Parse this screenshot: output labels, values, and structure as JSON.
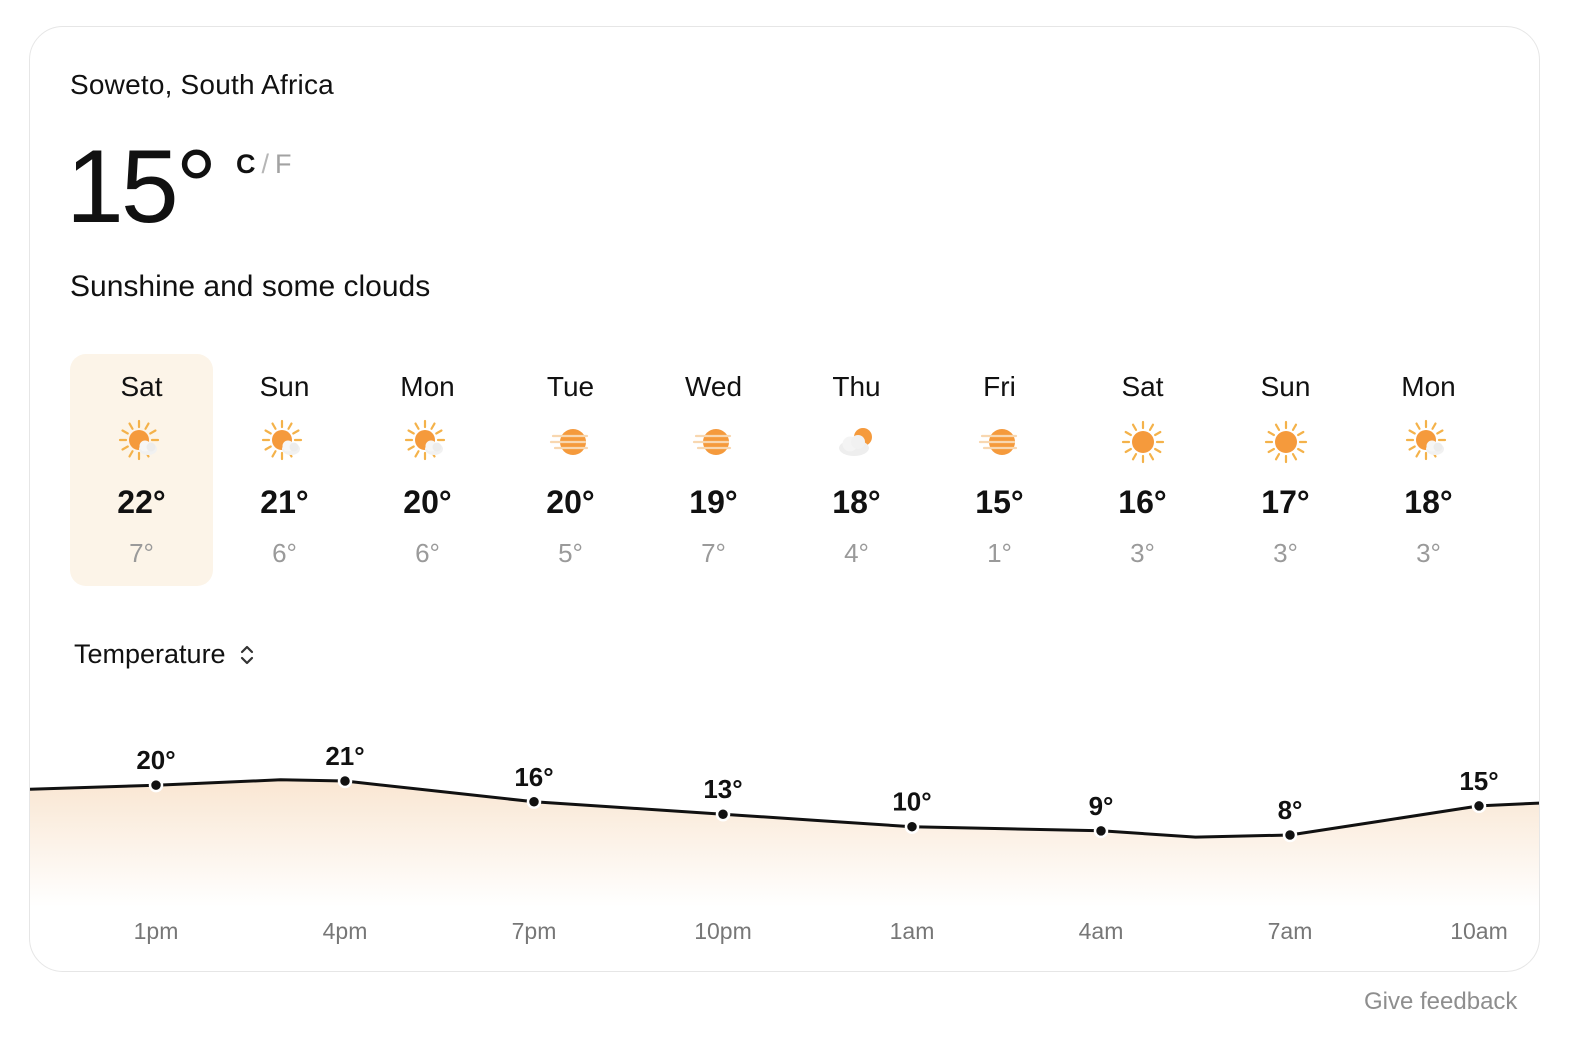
{
  "location": "Soweto, South Africa",
  "current": {
    "temperature": "15°",
    "unit_c": "C",
    "unit_separator": "/",
    "unit_f": "F",
    "condition": "Sunshine and some clouds"
  },
  "forecast": [
    {
      "day": "Sat",
      "icon": "sun-cloud-icon",
      "high": "22°",
      "low": "7°",
      "selected": true
    },
    {
      "day": "Sun",
      "icon": "sun-cloud-icon",
      "high": "21°",
      "low": "6°"
    },
    {
      "day": "Mon",
      "icon": "sun-cloud-icon",
      "high": "20°",
      "low": "6°"
    },
    {
      "day": "Tue",
      "icon": "haze-sun-icon",
      "high": "20°",
      "low": "5°"
    },
    {
      "day": "Wed",
      "icon": "haze-sun-icon",
      "high": "19°",
      "low": "7°"
    },
    {
      "day": "Thu",
      "icon": "cloud-sun-icon",
      "high": "18°",
      "low": "4°"
    },
    {
      "day": "Fri",
      "icon": "haze-sun-icon",
      "high": "15°",
      "low": "1°"
    },
    {
      "day": "Sat",
      "icon": "sun-icon",
      "high": "16°",
      "low": "3°"
    },
    {
      "day": "Sun",
      "icon": "sun-icon",
      "high": "17°",
      "low": "3°"
    },
    {
      "day": "Mon",
      "icon": "sun-cloud-icon",
      "high": "18°",
      "low": "3°"
    }
  ],
  "metric_selector": {
    "label": "Temperature",
    "icon": "chevron-up-down-icon"
  },
  "chart_data": {
    "type": "area",
    "x": [
      "1pm",
      "4pm",
      "7pm",
      "10pm",
      "1am",
      "4am",
      "7am",
      "10am"
    ],
    "series": [
      {
        "values": [
          20,
          21,
          16,
          13,
          10,
          9,
          8,
          15
        ],
        "labels": [
          "20°",
          "21°",
          "16°",
          "13°",
          "10°",
          "9°",
          "8°",
          "15°"
        ]
      }
    ],
    "colors": {
      "line": "#111111",
      "fill": "#f9e8d6"
    }
  },
  "feedback": "Give feedback",
  "colors": {
    "selected_day_bg": "#fcf4e8",
    "sun": "#f59a3c",
    "muted_text": "#9a9a9a"
  }
}
